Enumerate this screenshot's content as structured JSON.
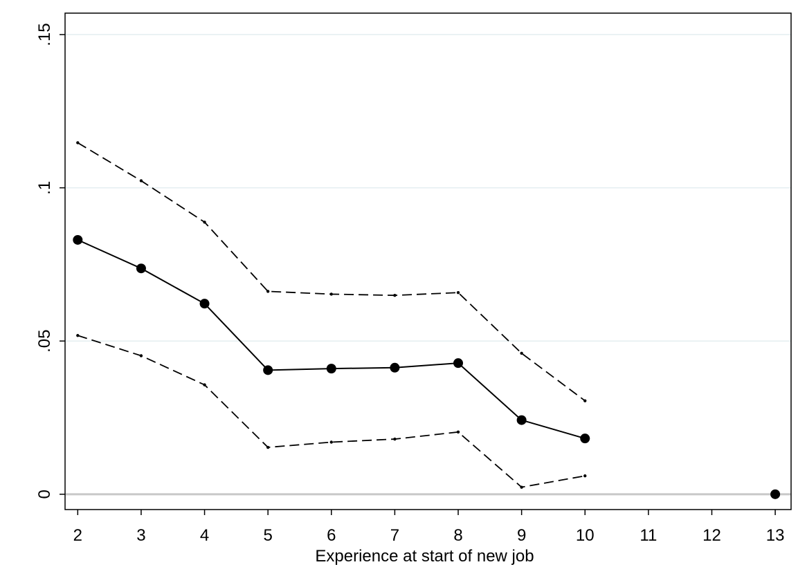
{
  "chart_data": {
    "type": "line",
    "title": "",
    "xlabel": "Experience at start of new job",
    "ylabel": "",
    "x_ticks": [
      2,
      3,
      4,
      5,
      6,
      7,
      8,
      9,
      10,
      11,
      12,
      13
    ],
    "y_ticks": [
      {
        "value": 0,
        "label": "0"
      },
      {
        "value": 0.05,
        "label": ".05"
      },
      {
        "value": 0.1,
        "label": ".1"
      },
      {
        "value": 0.15,
        "label": ".15"
      }
    ],
    "xlim": [
      1.8,
      13.25
    ],
    "ylim": [
      -0.005,
      0.157
    ],
    "grid": "horizontal",
    "legend": "none",
    "series": [
      {
        "role": "estimate",
        "style": "solid-markers",
        "points": [
          {
            "x": 2,
            "y": 0.083
          },
          {
            "x": 3,
            "y": 0.0737
          },
          {
            "x": 4,
            "y": 0.0622
          },
          {
            "x": 5,
            "y": 0.0405
          },
          {
            "x": 6,
            "y": 0.041
          },
          {
            "x": 7,
            "y": 0.0413
          },
          {
            "x": 8,
            "y": 0.0428
          },
          {
            "x": 9,
            "y": 0.0242
          },
          {
            "x": 10,
            "y": 0.0182
          },
          {
            "x": 13,
            "y": 0.0
          }
        ]
      },
      {
        "role": "upper-ci",
        "style": "dashed",
        "points": [
          {
            "x": 2,
            "y": 0.1147
          },
          {
            "x": 3,
            "y": 0.1023
          },
          {
            "x": 4,
            "y": 0.0888
          },
          {
            "x": 5,
            "y": 0.0662
          },
          {
            "x": 6,
            "y": 0.0653
          },
          {
            "x": 7,
            "y": 0.0649
          },
          {
            "x": 8,
            "y": 0.0658
          },
          {
            "x": 9,
            "y": 0.046
          },
          {
            "x": 10,
            "y": 0.0305
          }
        ]
      },
      {
        "role": "lower-ci",
        "style": "dashed",
        "points": [
          {
            "x": 2,
            "y": 0.0518
          },
          {
            "x": 3,
            "y": 0.0452
          },
          {
            "x": 4,
            "y": 0.0357
          },
          {
            "x": 5,
            "y": 0.0153
          },
          {
            "x": 6,
            "y": 0.017
          },
          {
            "x": 7,
            "y": 0.018
          },
          {
            "x": 8,
            "y": 0.0203
          },
          {
            "x": 9,
            "y": 0.0023
          },
          {
            "x": 10,
            "y": 0.006
          }
        ]
      }
    ],
    "colors": {
      "line": "#000000",
      "grid": "#e4eef0",
      "zero_line": "#c8c8c8"
    }
  }
}
